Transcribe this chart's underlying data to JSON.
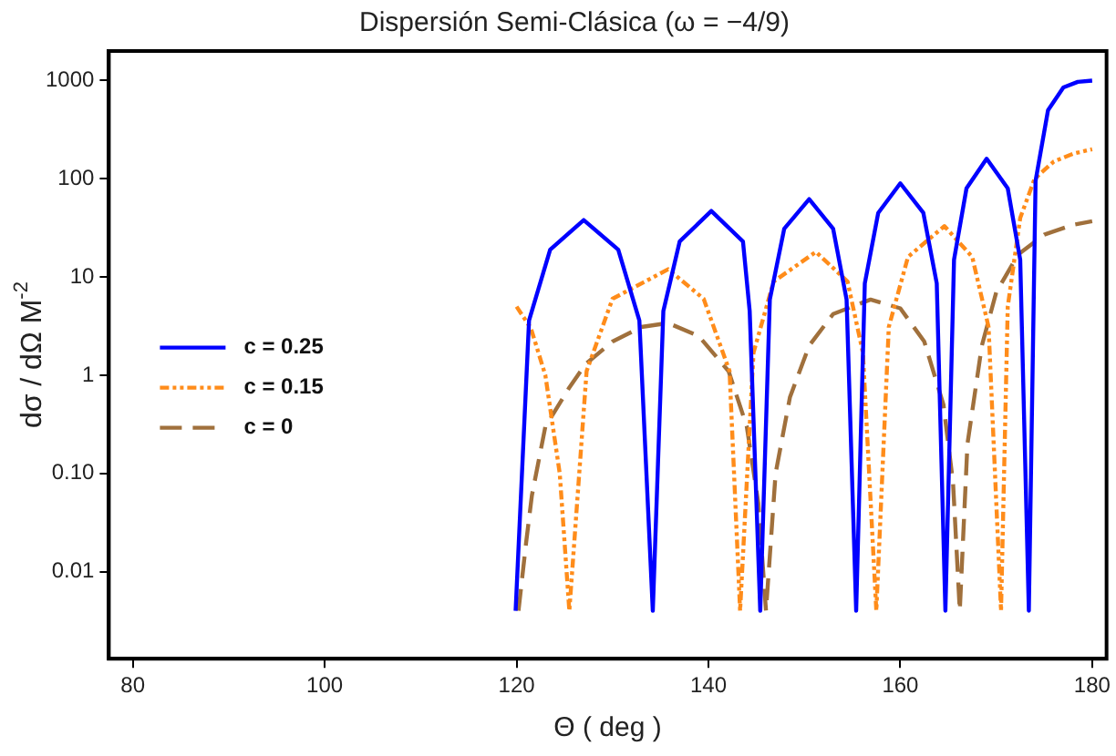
{
  "chart_data": {
    "type": "line",
    "title": "Dispersión Semi-Clásica (ω = −4/9)",
    "xlabel": "Θ ( deg )",
    "ylabel": "dσ / dΩ M$^{-2}$",
    "xlim": [
      77.5,
      181.5
    ],
    "xticks": [
      80,
      100,
      120,
      140,
      160,
      180
    ],
    "ylim": [
      0.0013,
      2000
    ],
    "yticks": [
      {
        "value": 0.01,
        "label": "0.01"
      },
      {
        "value": 0.1,
        "label": "0.10"
      },
      1,
      10,
      100,
      1000
    ],
    "log": "y",
    "grid": false,
    "legend": "left",
    "marker": "none",
    "series": [
      {
        "name": "c = 0.25",
        "color": "#0000ff",
        "line_style": "solid",
        "x": [
          119.9,
          121.3,
          123.5,
          127,
          130.6,
          132.8,
          134.2,
          135.3,
          137,
          140.3,
          143.6,
          144.3,
          145.4,
          146.4,
          147.9,
          150.5,
          153,
          154.4,
          155.4,
          156.3,
          157.7,
          160,
          162.4,
          163.8,
          164.7,
          165.6,
          166.9,
          169,
          171.2,
          172.5,
          173.4,
          174.1,
          175.4,
          177,
          178.5,
          180
        ],
        "values": [
          0.004,
          3.6,
          19,
          38,
          19,
          3.6,
          0.004,
          4.5,
          23,
          47,
          23,
          4.5,
          0.004,
          5.9,
          31,
          62,
          31,
          5.9,
          0.004,
          8.6,
          45,
          90,
          45,
          8.6,
          0.004,
          15,
          80,
          160,
          80,
          15,
          0.004,
          95,
          500,
          850,
          970,
          1000
        ]
      },
      {
        "name": "c = 0.15",
        "color": "#ff8c1a",
        "line_style": "dotted",
        "x": [
          120,
          121.5,
          123,
          124.5,
          125.5,
          127.3,
          130,
          135.8,
          139.5,
          142.2,
          143.3,
          144.7,
          146.8,
          151.2,
          154.5,
          156.1,
          157.5,
          158.8,
          160.8,
          164.6,
          167.5,
          169.2,
          170.5,
          171.2,
          172.5,
          174,
          176,
          178,
          180
        ],
        "values": [
          5,
          3,
          1,
          0.1,
          0.004,
          1.1,
          6,
          12,
          6,
          1.1,
          0.004,
          1.7,
          9,
          18,
          9,
          1.7,
          0.004,
          3.1,
          16,
          33,
          16,
          3.1,
          0.004,
          5,
          40,
          100,
          150,
          180,
          200
        ]
      },
      {
        "name": "c = 0",
        "color": "#a0703c",
        "line_style": "dashed",
        "x": [
          120.2,
          121,
          121.6,
          123,
          125.5,
          127.2,
          130,
          133,
          135.8,
          139,
          142.1,
          144,
          145.2,
          146,
          147,
          148.5,
          150.5,
          153,
          156.9,
          160,
          162.5,
          164.5,
          165.5,
          166.2,
          167,
          168.5,
          170,
          172.3,
          175,
          178,
          180
        ],
        "values": [
          0.004,
          0.02,
          0.06,
          0.3,
          0.75,
          1.3,
          2.2,
          3.1,
          3.4,
          2.5,
          1.1,
          0.3,
          0.05,
          0.004,
          0.1,
          0.6,
          2,
          4.2,
          5.9,
          4.8,
          2.2,
          0.5,
          0.08,
          0.004,
          0.2,
          2,
          7,
          17,
          27,
          34,
          37
        ]
      }
    ]
  }
}
